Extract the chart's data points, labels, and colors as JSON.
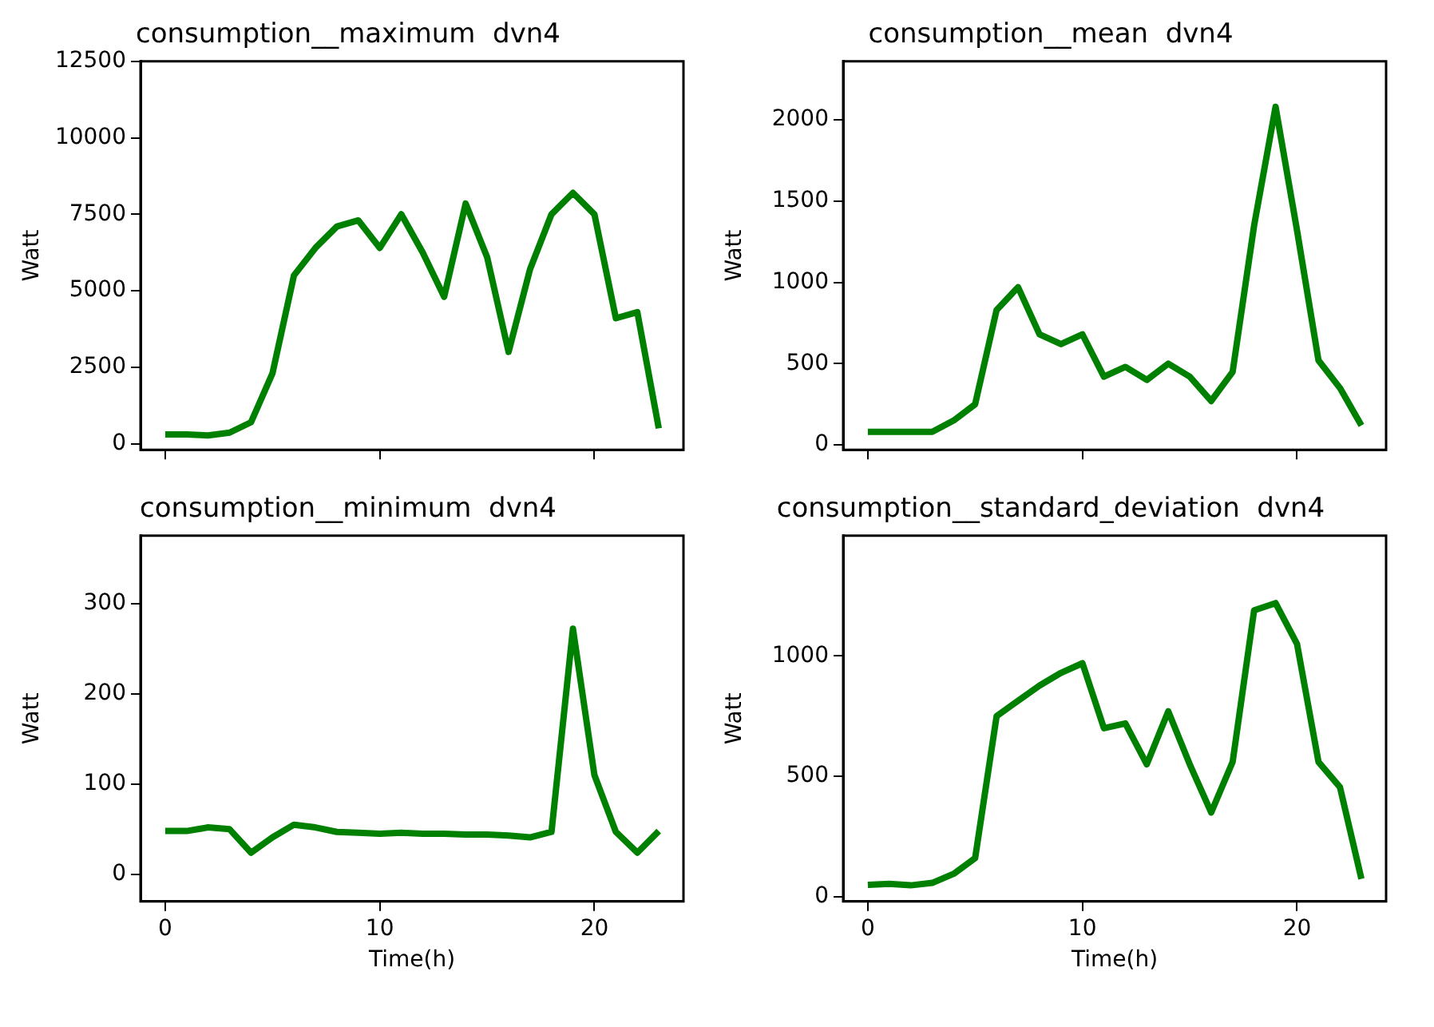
{
  "chart_data": [
    {
      "type": "line",
      "title": "consumption__maximum  dvn4",
      "ylabel": "Watt",
      "x": [
        0,
        1,
        2,
        3,
        4,
        5,
        6,
        7,
        8,
        9,
        10,
        11,
        12,
        13,
        14,
        15,
        16,
        17,
        18,
        19,
        20,
        21,
        22,
        23
      ],
      "series": [
        {
          "color": "#008000",
          "values": [
            300,
            300,
            270,
            360,
            700,
            2300,
            5500,
            6400,
            7100,
            7300,
            6400,
            7500,
            6250,
            4800,
            7850,
            6100,
            3000,
            5700,
            7500,
            8200,
            7500,
            4100,
            4300,
            500
          ]
        }
      ],
      "xlim": [
        -1.15,
        24.15
      ],
      "xticks": [
        0,
        10,
        20
      ],
      "ylim": [
        -200,
        12500
      ],
      "yticks": [
        0,
        2500,
        5000,
        7500,
        10000,
        12500
      ],
      "tick_labels": "y",
      "grid": false,
      "legend": false
    },
    {
      "type": "line",
      "title": "consumption__mean  dvn4",
      "ylabel": "Watt",
      "x": [
        0,
        1,
        2,
        3,
        4,
        5,
        6,
        7,
        8,
        9,
        10,
        11,
        12,
        13,
        14,
        15,
        16,
        17,
        18,
        19,
        20,
        21,
        22,
        23
      ],
      "series": [
        {
          "color": "#008000",
          "values": [
            80,
            80,
            80,
            80,
            150,
            250,
            830,
            970,
            680,
            620,
            680,
            420,
            480,
            400,
            500,
            420,
            270,
            450,
            1350,
            2080,
            1320,
            520,
            350,
            120
          ]
        }
      ],
      "xlim": [
        -1.15,
        24.15
      ],
      "xticks": [
        0,
        10,
        20
      ],
      "ylim": [
        -30,
        2360
      ],
      "yticks": [
        0,
        500,
        1000,
        1500,
        2000
      ],
      "tick_labels": "y",
      "grid": false,
      "legend": false
    },
    {
      "type": "line",
      "title": "consumption__minimum  dvn4",
      "xlabel": "Time(h)",
      "ylabel": "Watt",
      "x": [
        0,
        1,
        2,
        3,
        4,
        5,
        6,
        7,
        8,
        9,
        10,
        11,
        12,
        13,
        14,
        15,
        16,
        17,
        18,
        19,
        20,
        21,
        22,
        23
      ],
      "series": [
        {
          "color": "#008000",
          "values": [
            48,
            48,
            52,
            50,
            24,
            41,
            55,
            52,
            47,
            46,
            45,
            46,
            45,
            45,
            44,
            44,
            43,
            41,
            47,
            272,
            110,
            47,
            24,
            48
          ]
        }
      ],
      "xlim": [
        -1.15,
        24.15
      ],
      "xticks": [
        0,
        10,
        20
      ],
      "ylim": [
        -30,
        375
      ],
      "yticks": [
        0,
        100,
        200,
        300
      ],
      "grid": false,
      "legend": false
    },
    {
      "type": "line",
      "title": "consumption__standard_deviation  dvn4",
      "xlabel": "Time(h)",
      "ylabel": "Watt",
      "x": [
        0,
        1,
        2,
        3,
        4,
        5,
        6,
        7,
        8,
        9,
        10,
        11,
        12,
        13,
        14,
        15,
        16,
        17,
        18,
        19,
        20,
        21,
        22,
        23
      ],
      "series": [
        {
          "color": "#008000",
          "values": [
            49,
            53,
            47,
            57,
            95,
            160,
            750,
            814,
            877,
            930,
            970,
            700,
            720,
            550,
            770,
            550,
            350,
            560,
            1190,
            1220,
            1050,
            560,
            455,
            74
          ]
        }
      ],
      "xlim": [
        -1.15,
        24.15
      ],
      "xticks": [
        0,
        10,
        20
      ],
      "ylim": [
        -20,
        1500
      ],
      "yticks": [
        0,
        500,
        1000
      ],
      "grid": false,
      "legend": false
    }
  ]
}
